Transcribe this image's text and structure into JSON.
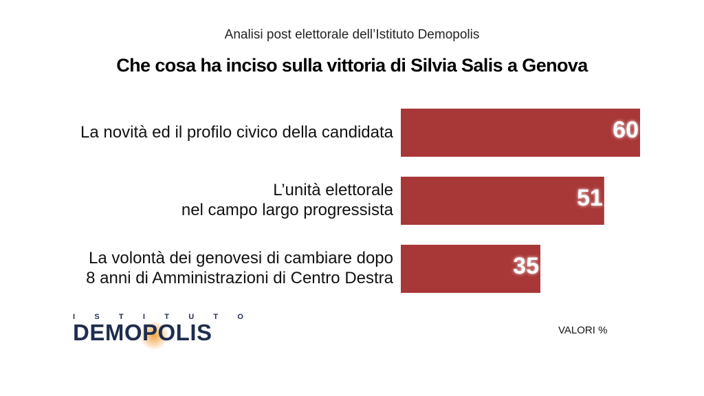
{
  "header": {
    "subtitle": "Analisi post elettorale dell’Istituto Demopolis",
    "title": "Che cosa ha inciso sulla vittoria di Silvia Salis a Genova"
  },
  "chart_data": {
    "type": "bar",
    "orientation": "horizontal",
    "categories": [
      [
        "La novità ed il profilo civico della candidata"
      ],
      [
        "L’unità elettorale",
        "nel campo largo progressista"
      ],
      [
        "La volontà dei genovesi di cambiare dopo",
        "8 anni di Amministrazioni di Centro Destra"
      ]
    ],
    "values": [
      60,
      51,
      35
    ],
    "data_labels": [
      "60",
      "51",
      "35"
    ],
    "xlim": [
      0,
      60
    ],
    "bar_color": "#a83838",
    "grid": false,
    "legend": "none"
  },
  "footer": {
    "brand_top": [
      "I",
      "S",
      "T",
      "I",
      "T",
      "U",
      "T",
      "O"
    ],
    "brand_main": "DEMOPOLIS",
    "units": "VALORI %"
  }
}
